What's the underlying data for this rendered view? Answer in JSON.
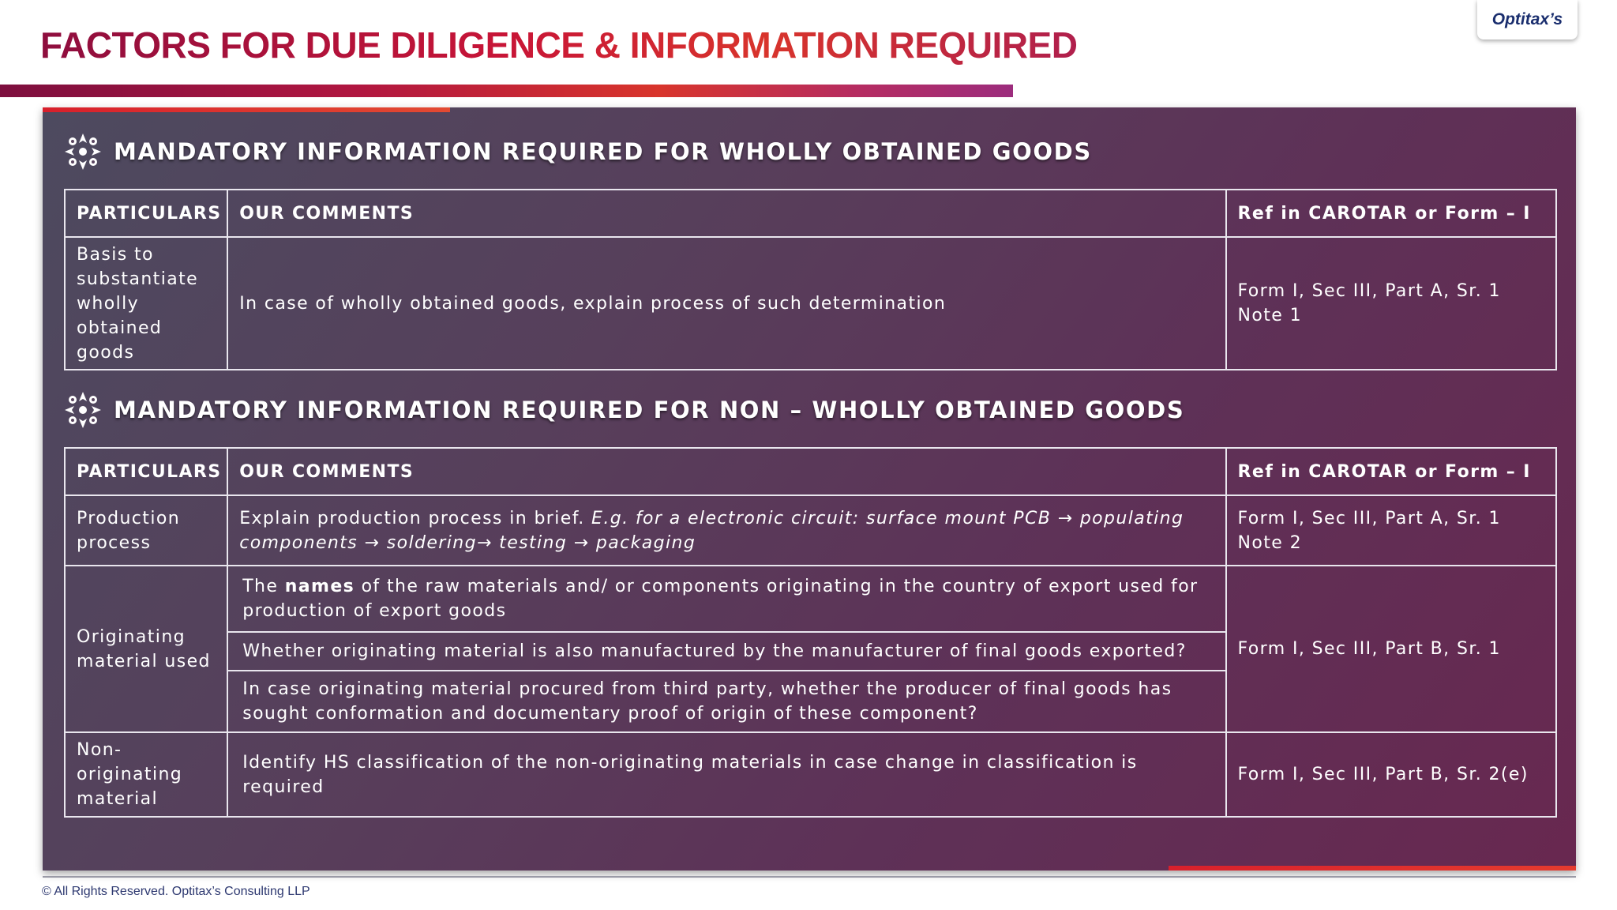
{
  "page": {
    "title": "FACTORS FOR DUE DILIGENCE & INFORMATION REQUIRED",
    "logo": "Optitax’s",
    "footer": "© All Rights Reserved. Optitax’s Consulting LLP"
  },
  "section1": {
    "heading": "MANDATORY INFORMATION REQUIRED FOR WHOLLY OBTAINED GOODS",
    "icon": "compass-rose-icon",
    "headers": [
      "PARTICULARS",
      "OUR COMMENTS",
      "Ref in CAROTAR or Form – I"
    ],
    "rows": [
      {
        "particular": "Basis to substantiate wholly obtained goods",
        "comment": "In case of wholly obtained goods, explain process of such determination",
        "ref_line1": "Form I, Sec III, Part A, Sr. 1",
        "ref_line2": "Note 1"
      }
    ]
  },
  "section2": {
    "heading": "MANDATORY INFORMATION REQUIRED FOR NON – WHOLLY OBTAINED GOODS",
    "icon": "compass-rose-icon",
    "headers": [
      "PARTICULARS",
      "OUR COMMENTS",
      "Ref in CAROTAR or Form – I"
    ],
    "production": {
      "particular": "Production process",
      "comment_plain": "Explain production process in brief. ",
      "comment_italic": "E.g. for a electronic circuit: surface mount PCB  → populating components  → soldering→ testing  → packaging",
      "ref_line1": "Form I, Sec III, Part A, Sr. 1",
      "ref_line2": "Note 2"
    },
    "originating": {
      "particular": "Originating material used",
      "comment1_pre": "The ",
      "comment1_bold": "names",
      "comment1_post": " of the raw materials and/ or components originating in the country of export used for production of export goods",
      "comment2": "Whether originating material is also manufactured by the manufacturer of final goods exported?",
      "comment3": "In case originating material procured from third party, whether the producer of final goods has sought conformation and documentary proof of origin of these component?",
      "ref": "Form I, Sec III, Part B, Sr. 1"
    },
    "nonoriginating": {
      "particular": "Non-originating material",
      "comment": "Identify HS classification of the non-originating materials in case change in classification is required",
      "ref": "Form I, Sec III, Part B, Sr. 2(e)"
    }
  },
  "colors": {
    "title_red": "#c81537",
    "panel_start": "#4d4a5f",
    "panel_end": "#682850",
    "accent": "#d8202c",
    "logo_text": "#1a2e6e"
  }
}
